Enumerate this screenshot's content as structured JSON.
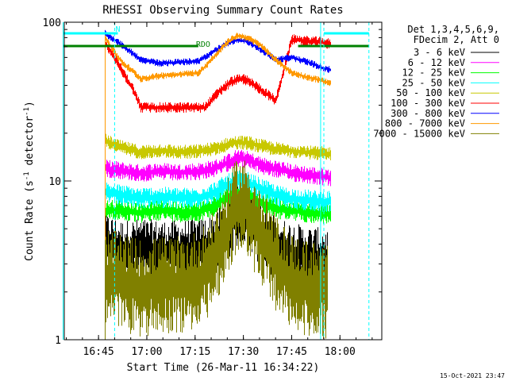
{
  "chart_data": {
    "type": "line",
    "title": "RHESSI Observing Summary Count Rates",
    "xlabel": "Start Time (26-Mar-11 16:34:22)",
    "ylabel": "Count Rate (s⁻¹ detector⁻¹)",
    "ylabel_parts": {
      "main": "Count Rate (s",
      "sup1": "-1",
      "mid": " detector",
      "sup2": "-1",
      "end": ")"
    },
    "y_scale": "log",
    "ylim": [
      1,
      100
    ],
    "y_ticks": [
      {
        "value": 1,
        "label": "1"
      },
      {
        "value": 10,
        "label": "10"
      },
      {
        "value": 100,
        "label": "100"
      }
    ],
    "xlim": [
      "16:34:22",
      "18:13:00"
    ],
    "x_ticks": [
      "16:45",
      "17:00",
      "17:15",
      "17:30",
      "17:45",
      "18:00"
    ],
    "footer_date": "15-Oct-2021 23:47",
    "legend_header": [
      "Det 1,3,4,5,6,9,",
      "FDecim 2, Att 0"
    ],
    "legend_placement": "right",
    "flags": [
      {
        "label": "N",
        "color": "#00ffff",
        "segments": [
          [
            "16:34",
            "16:51"
          ],
          [
            "17:55",
            "18:09"
          ]
        ]
      },
      {
        "label": "RDO",
        "color": "#008000",
        "segments": [
          [
            "16:34",
            "17:16"
          ],
          [
            "17:47",
            "18:09"
          ]
        ]
      }
    ],
    "vlines": [
      {
        "time": "16:34",
        "color": "#00ffff",
        "dashed": false
      },
      {
        "time": "16:50",
        "color": "#00ffff",
        "dashed": true
      },
      {
        "time": "17:54",
        "color": "#00ffff",
        "dashed": false
      },
      {
        "time": "17:55",
        "color": "#00ffff",
        "dashed": true
      },
      {
        "time": "18:09",
        "color": "#00ffff",
        "dashed": true
      }
    ],
    "series": [
      {
        "name": "3 - 6 keV",
        "color": "#000000",
        "noise": 0.35,
        "points": [
          [
            "16:47",
            4
          ],
          [
            "16:52",
            3.6
          ],
          [
            "16:58",
            3.7
          ],
          [
            "17:04",
            3.6
          ],
          [
            "17:10",
            3.6
          ],
          [
            "17:16",
            3.7
          ],
          [
            "17:20",
            3.9
          ],
          [
            "17:25",
            5
          ],
          [
            "17:28",
            6
          ],
          [
            "17:31",
            5.8
          ],
          [
            "17:35",
            4.5
          ],
          [
            "17:40",
            3.8
          ],
          [
            "17:45",
            3.5
          ],
          [
            "17:50",
            3.3
          ],
          [
            "17:56",
            3.2
          ]
        ]
      },
      {
        "name": "6 - 12 keV",
        "color": "#ff00ff",
        "noise": 0.1,
        "points": [
          [
            "16:47",
            12
          ],
          [
            "16:50",
            11.8
          ],
          [
            "16:58",
            11.2
          ],
          [
            "17:04",
            11.5
          ],
          [
            "17:10",
            11.3
          ],
          [
            "17:16",
            11.5
          ],
          [
            "17:21",
            12
          ],
          [
            "17:25",
            13
          ],
          [
            "17:28",
            14
          ],
          [
            "17:31",
            13.6
          ],
          [
            "17:36",
            12.4
          ],
          [
            "17:41",
            11.8
          ],
          [
            "17:46",
            11.2
          ],
          [
            "17:52",
            10.8
          ],
          [
            "17:57",
            10.5
          ]
        ]
      },
      {
        "name": "12 - 25 keV",
        "color": "#00ff00",
        "noise": 0.12,
        "points": [
          [
            "16:47",
            6.5
          ],
          [
            "16:51",
            6.6
          ],
          [
            "16:58",
            6.3
          ],
          [
            "17:04",
            6.6
          ],
          [
            "17:10",
            6.4
          ],
          [
            "17:16",
            6.4
          ],
          [
            "17:21",
            7
          ],
          [
            "17:25",
            8
          ],
          [
            "17:28",
            8.5
          ],
          [
            "17:31",
            8.3
          ],
          [
            "17:36",
            7.2
          ],
          [
            "17:41",
            6.7
          ],
          [
            "17:46",
            6.5
          ],
          [
            "17:52",
            6.3
          ],
          [
            "17:57",
            6.2
          ]
        ]
      },
      {
        "name": "25 - 50 keV",
        "color": "#00ffff",
        "noise": 0.12,
        "points": [
          [
            "16:47",
            8.5
          ],
          [
            "16:51",
            8.2
          ],
          [
            "16:58",
            7.8
          ],
          [
            "17:04",
            7.9
          ],
          [
            "17:10",
            7.8
          ],
          [
            "17:16",
            7.8
          ],
          [
            "17:21",
            8.5
          ],
          [
            "17:25",
            9.5
          ],
          [
            "17:28",
            10
          ],
          [
            "17:31",
            9.8
          ],
          [
            "17:36",
            8.8
          ],
          [
            "17:41",
            8
          ],
          [
            "17:46",
            7.7
          ],
          [
            "17:52",
            7.5
          ],
          [
            "17:57",
            7.4
          ]
        ]
      },
      {
        "name": "50 - 100 keV",
        "color": "#c8c800",
        "noise": 0.08,
        "points": [
          [
            "16:47",
            18
          ],
          [
            "16:51",
            16.5
          ],
          [
            "16:58",
            15.2
          ],
          [
            "17:04",
            15.6
          ],
          [
            "17:10",
            15.2
          ],
          [
            "17:16",
            15.4
          ],
          [
            "17:21",
            16
          ],
          [
            "17:25",
            17
          ],
          [
            "17:28",
            17.5
          ],
          [
            "17:31",
            17.4
          ],
          [
            "17:36",
            16.5
          ],
          [
            "17:41",
            15.8
          ],
          [
            "17:46",
            15.4
          ],
          [
            "17:52",
            15
          ],
          [
            "17:57",
            14.8
          ]
        ]
      },
      {
        "name": "100 - 300 keV",
        "color": "#ff0000",
        "noise": 0.06,
        "points": [
          [
            "16:47",
            75
          ],
          [
            "16:51",
            55
          ],
          [
            "16:55",
            40
          ],
          [
            "16:58",
            29
          ],
          [
            "17:18",
            29
          ],
          [
            "17:22",
            36
          ],
          [
            "17:26",
            42
          ],
          [
            "17:29",
            44
          ],
          [
            "17:31",
            43
          ],
          [
            "17:35",
            38
          ],
          [
            "17:40",
            32
          ],
          [
            "17:45",
            78
          ],
          [
            "17:50",
            76
          ],
          [
            "17:54",
            75
          ],
          [
            "17:57",
            73
          ]
        ]
      },
      {
        "name": "300 - 800 keV",
        "color": "#0000ff",
        "noise": 0.04,
        "points": [
          [
            "16:47",
            85
          ],
          [
            "16:51",
            75
          ],
          [
            "16:55",
            65
          ],
          [
            "16:58",
            58
          ],
          [
            "17:04",
            55
          ],
          [
            "17:10",
            56
          ],
          [
            "17:16",
            57
          ],
          [
            "17:20",
            64
          ],
          [
            "17:25",
            74
          ],
          [
            "17:28",
            77
          ],
          [
            "17:31",
            76
          ],
          [
            "17:35",
            68
          ],
          [
            "17:40",
            58
          ],
          [
            "17:45",
            60
          ],
          [
            "17:50",
            56
          ],
          [
            "17:54",
            52
          ],
          [
            "17:57",
            50
          ]
        ]
      },
      {
        "name": "800 - 7000 keV",
        "color": "#ff9900",
        "noise": 0.04,
        "points": [
          [
            "16:47",
            80
          ],
          [
            "16:51",
            60
          ],
          [
            "16:54",
            52
          ],
          [
            "16:58",
            44
          ],
          [
            "17:04",
            46
          ],
          [
            "17:10",
            47
          ],
          [
            "17:16",
            48
          ],
          [
            "17:20",
            58
          ],
          [
            "17:25",
            75
          ],
          [
            "17:28",
            82
          ],
          [
            "17:31",
            80
          ],
          [
            "17:35",
            72
          ],
          [
            "17:40",
            58
          ],
          [
            "17:45",
            48
          ],
          [
            "17:50",
            45
          ],
          [
            "17:54",
            43
          ],
          [
            "17:57",
            41
          ]
        ]
      },
      {
        "name": "7000 - 15000 keV",
        "color": "#808000",
        "noise": 0.55,
        "points": [
          [
            "16:47",
            2.5
          ],
          [
            "16:52",
            2.3
          ],
          [
            "16:58",
            2.1
          ],
          [
            "17:04",
            2.2
          ],
          [
            "17:10",
            2.2
          ],
          [
            "17:16",
            2.4
          ],
          [
            "17:20",
            3
          ],
          [
            "17:25",
            5
          ],
          [
            "17:28",
            7
          ],
          [
            "17:31",
            6.8
          ],
          [
            "17:35",
            4.5
          ],
          [
            "17:40",
            3
          ],
          [
            "17:45",
            2.3
          ],
          [
            "17:50",
            2.1
          ],
          [
            "17:56",
            2
          ]
        ]
      }
    ]
  }
}
